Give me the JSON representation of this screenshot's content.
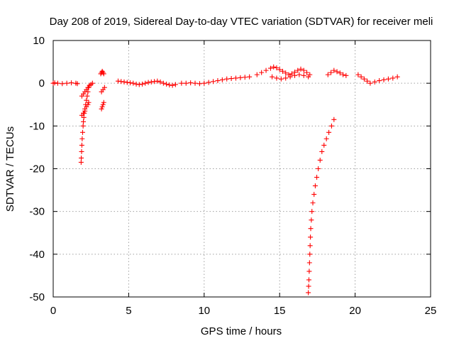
{
  "chart_data": {
    "type": "scatter",
    "title": "Day 208 of 2019, Sidereal Day-to-day VTEC variation (SDTVAR) for receiver meli",
    "xlabel": "GPS time / hours",
    "ylabel": "SDTVAR / TECUs",
    "xlim": [
      0,
      25
    ],
    "ylim": [
      -50,
      10
    ],
    "xticks": [
      0,
      5,
      10,
      15,
      20,
      25
    ],
    "yticks": [
      -50,
      -40,
      -30,
      -20,
      -10,
      0,
      10
    ],
    "xtick_labels": [
      "0",
      "5",
      "10",
      "15",
      "20",
      "25"
    ],
    "ytick_labels": [
      "-50",
      "-40",
      "-30",
      "-20",
      "-10",
      "0",
      "10"
    ],
    "grid": true,
    "marker": "+",
    "color": "#ff0000",
    "series": [
      {
        "name": "SDTVAR",
        "segments": [
          {
            "x": [
              0.0,
              0.1,
              0.3,
              0.6,
              0.9,
              1.2,
              1.5,
              1.6
            ],
            "y": [
              0.0,
              0.1,
              0.0,
              -0.1,
              0.0,
              0.1,
              0.0,
              -0.1
            ]
          },
          {
            "x": [
              1.85,
              1.86,
              1.88,
              1.9,
              1.92,
              1.95,
              1.98,
              2.0,
              2.03,
              2.06,
              2.1,
              2.15,
              2.2,
              2.25,
              2.3,
              2.35
            ],
            "y": [
              -18.5,
              -17.5,
              -16.0,
              -14.5,
              -13.0,
              -11.5,
              -10.0,
              -9.0,
              -8.0,
              -7.0,
              -6.0,
              -5.0,
              -4.0,
              -3.0,
              -2.0,
              -1.0
            ]
          },
          {
            "x": [
              1.9,
              2.0,
              2.1,
              2.2,
              2.3,
              2.35
            ],
            "y": [
              -7.5,
              -7.0,
              -6.5,
              -5.5,
              -5.0,
              -4.5
            ]
          },
          {
            "x": [
              1.9,
              2.0,
              2.1,
              2.2,
              2.3,
              2.4,
              2.5,
              2.6
            ],
            "y": [
              -3.0,
              -2.5,
              -2.0,
              -1.5,
              -1.0,
              -0.5,
              -0.3,
              0.0
            ]
          },
          {
            "x": [
              3.2,
              3.25,
              3.3,
              3.35
            ],
            "y": [
              -6.0,
              -5.5,
              -5.0,
              -4.5
            ]
          },
          {
            "x": [
              3.2,
              3.3,
              3.4
            ],
            "y": [
              -2.0,
              -1.5,
              -1.0
            ]
          },
          {
            "x": [
              3.15,
              3.2,
              3.25,
              3.3,
              3.35
            ],
            "y": [
              2.2,
              2.5,
              2.8,
              2.5,
              2.2
            ]
          },
          {
            "x": [
              4.3,
              4.5,
              4.7,
              4.9,
              5.1
            ],
            "y": [
              0.5,
              0.4,
              0.3,
              0.2,
              0.1
            ]
          },
          {
            "x": [
              5.3,
              5.5,
              5.7,
              5.9,
              6.1,
              6.3,
              6.5,
              6.7,
              6.9,
              7.1,
              7.3,
              7.5,
              7.7,
              7.9,
              8.1
            ],
            "y": [
              0.0,
              -0.2,
              -0.3,
              -0.2,
              0.0,
              0.2,
              0.3,
              0.4,
              0.5,
              0.3,
              0.0,
              -0.2,
              -0.4,
              -0.5,
              -0.3
            ]
          },
          {
            "x": [
              8.5,
              8.8,
              9.1,
              9.4,
              9.7,
              10.0,
              10.3,
              10.6,
              10.9,
              11.2,
              11.5,
              11.8,
              12.1,
              12.4,
              12.7,
              13.0
            ],
            "y": [
              0.0,
              0.0,
              0.1,
              0.0,
              -0.1,
              0.0,
              0.2,
              0.4,
              0.6,
              0.8,
              1.0,
              1.1,
              1.2,
              1.3,
              1.4,
              1.5
            ]
          },
          {
            "x": [
              13.5,
              13.8,
              14.1,
              14.4,
              14.6,
              14.8,
              15.0,
              15.2,
              15.4,
              15.6,
              15.8,
              16.0,
              16.2,
              16.4,
              16.6,
              16.8,
              17.0
            ],
            "y": [
              2.0,
              2.5,
              3.0,
              3.5,
              3.8,
              3.6,
              3.2,
              2.8,
              2.4,
              2.0,
              2.2,
              2.6,
              3.0,
              3.3,
              3.0,
              2.5,
              2.0
            ]
          },
          {
            "x": [
              14.5,
              14.8,
              15.1,
              15.4,
              15.7,
              16.0,
              16.3,
              16.6,
              16.9
            ],
            "y": [
              1.5,
              1.2,
              1.0,
              1.2,
              1.5,
              1.8,
              2.0,
              1.8,
              1.5
            ]
          },
          {
            "x": [
              16.9,
              16.92,
              16.94,
              16.96,
              16.98,
              17.0,
              17.02,
              17.04,
              17.06,
              17.1,
              17.14,
              17.2,
              17.28,
              17.36,
              17.46,
              17.56,
              17.68,
              17.8,
              17.94,
              18.1,
              18.26,
              18.44,
              18.6
            ],
            "y": [
              -49.0,
              -47.5,
              -46.0,
              -44.0,
              -42.0,
              -40.0,
              -38.0,
              -36.0,
              -34.0,
              -32.0,
              -30.0,
              -28.0,
              -26.0,
              -24.0,
              -22.0,
              -20.0,
              -18.0,
              -16.0,
              -14.5,
              -13.0,
              -11.5,
              -10.0,
              -8.5
            ]
          },
          {
            "x": [
              18.2,
              18.4,
              18.6,
              18.8,
              19.0,
              19.2,
              19.4
            ],
            "y": [
              2.0,
              2.5,
              3.0,
              2.7,
              2.4,
              2.0,
              1.8
            ]
          },
          {
            "x": [
              20.2,
              20.4,
              20.6,
              20.8,
              21.0,
              21.3,
              21.6,
              21.9,
              22.2,
              22.5,
              22.8
            ],
            "y": [
              2.0,
              1.5,
              1.0,
              0.5,
              0.0,
              0.3,
              0.6,
              0.8,
              1.0,
              1.2,
              1.5
            ]
          }
        ]
      }
    ]
  }
}
